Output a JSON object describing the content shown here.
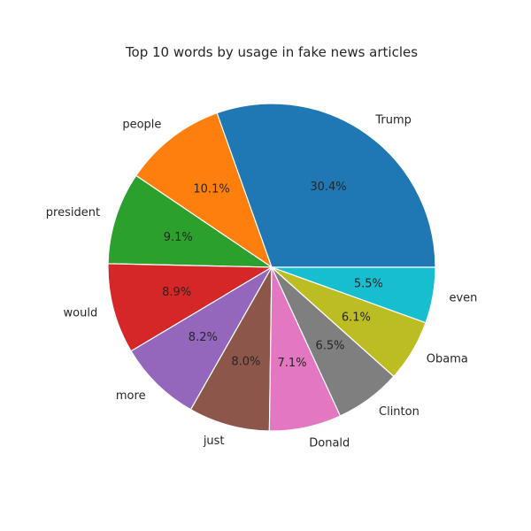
{
  "chart_data": {
    "type": "pie",
    "title": "Top 10 words by usage in fake news articles",
    "categories": [
      "Trump",
      "people",
      "president",
      "would",
      "more",
      "just",
      "Donald",
      "Clinton",
      "Obama",
      "even"
    ],
    "values": [
      30.4,
      10.1,
      9.1,
      8.9,
      8.2,
      8.0,
      7.1,
      6.5,
      6.1,
      5.5
    ],
    "percent_labels": [
      "30.4%",
      "10.1%",
      "9.1%",
      "8.9%",
      "8.2%",
      "8.0%",
      "7.1%",
      "6.5%",
      "6.1%",
      "5.5%"
    ],
    "colors": [
      "#1f77b4",
      "#ff7f0e",
      "#2ca02c",
      "#d62728",
      "#9467bd",
      "#8c564b",
      "#e377c2",
      "#7f7f7f",
      "#bcbd22",
      "#17becf"
    ],
    "start_angle_deg": 0,
    "direction": "counterclockwise"
  }
}
